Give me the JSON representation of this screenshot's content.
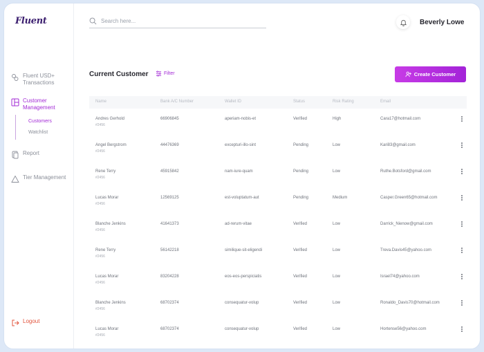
{
  "app": {
    "logo": "Fluent"
  },
  "sidebar": {
    "items": [
      {
        "label": "Fluent USD+ Transactions",
        "icon": "coins-icon"
      },
      {
        "label": "Customer Management",
        "icon": "layout-icon"
      },
      {
        "label": "Report",
        "icon": "document-icon"
      },
      {
        "label": "Tier Management",
        "icon": "triangle-icon"
      }
    ],
    "sub_items": [
      "Customers",
      "Watchlist"
    ],
    "logout_label": "Logout"
  },
  "header": {
    "search_placeholder": "Search here...",
    "user_name": "Beverly Lowe"
  },
  "main": {
    "title": "Current Customer",
    "filter_label": "Filter",
    "create_label": "Create Customer"
  },
  "table": {
    "columns": [
      "Name",
      "Bank A/C Number",
      "Wallet ID",
      "Status",
      "Risk Rating",
      "Email"
    ],
    "rows": [
      {
        "name": "Andres Gerhold",
        "id": "#2456",
        "account": "66906845",
        "wallet": "aperiam-nobis-et",
        "status": "Verified",
        "risk": "High",
        "email": "Cara17@hotmail.com"
      },
      {
        "name": "Angel Bergstrom",
        "id": "#2456",
        "account": "44476369",
        "wallet": "excepturi-illo-sint",
        "status": "Pending",
        "risk": "Low",
        "email": "Kari83@gmail.com"
      },
      {
        "name": "Rene Terry",
        "id": "#2456",
        "account": "45915842",
        "wallet": "nam-iure-quam",
        "status": "Pending",
        "risk": "Low",
        "email": "Ruthe.Botsford@gmail.com"
      },
      {
        "name": "Lucas Morar",
        "id": "#2456",
        "account": "12569125",
        "wallet": "est-voluptatum-aut",
        "status": "Pending",
        "risk": "Medium",
        "email": "Casper.Green65@hotmail.com"
      },
      {
        "name": "Blanche Jenkins",
        "id": "#2456",
        "account": "41641373",
        "wallet": "ad-rerum-vitae",
        "status": "Verified",
        "risk": "Low",
        "email": "Darrick_Nienow@gmail.com"
      },
      {
        "name": "Rene Terry",
        "id": "#2456",
        "account": "56142218",
        "wallet": "similique-sit-eligendi",
        "status": "Verified",
        "risk": "Low",
        "email": "Treva.Davis45@yahoo.com"
      },
      {
        "name": "Lucas Morar",
        "id": "#2456",
        "account": "83204228",
        "wallet": "eos-eos-perspiciatis",
        "status": "Verified",
        "risk": "Low",
        "email": "Israel74@yahoo.com"
      },
      {
        "name": "Blanche Jenkins",
        "id": "#2456",
        "account": "68702374",
        "wallet": "consequatur-volup",
        "status": "Verified",
        "risk": "Low",
        "email": "Ronaldo_Davis70@hotmail.com"
      },
      {
        "name": "Lucas Morar",
        "id": "#2456",
        "account": "68702374",
        "wallet": "consequatur-volup",
        "status": "Verified",
        "risk": "Low",
        "email": "Hortense56@yahoo.com"
      }
    ]
  },
  "colors": {
    "accent": "#a32bd6",
    "logout": "#e2543d",
    "frame": "#dde8f7"
  }
}
